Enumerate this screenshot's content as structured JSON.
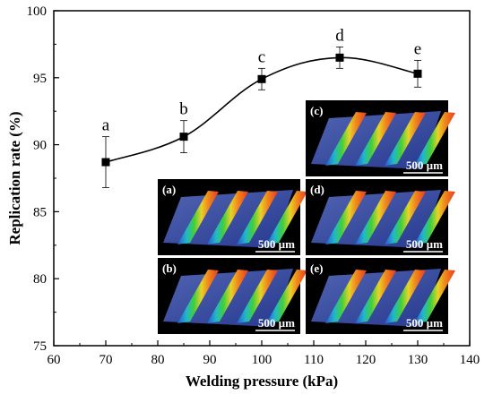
{
  "chart_data": {
    "type": "line",
    "xlabel": "Welding pressure (kPa)",
    "ylabel": "Replication rate (%)",
    "xlim": [
      60,
      140
    ],
    "ylim": [
      75,
      100
    ],
    "xticks": [
      60,
      70,
      80,
      90,
      100,
      110,
      120,
      130,
      140
    ],
    "yticks": [
      75,
      80,
      85,
      90,
      95,
      100
    ],
    "grid": false,
    "series": [
      {
        "x": [
          70,
          85,
          100,
          115,
          130
        ],
        "y": [
          88.7,
          90.6,
          94.9,
          96.5,
          95.3
        ],
        "error": [
          1.9,
          1.2,
          0.8,
          0.8,
          1.0
        ],
        "marker": "square",
        "color": "#000000",
        "smooth": true
      }
    ],
    "annotations": [
      "a",
      "b",
      "c",
      "d",
      "e"
    ]
  },
  "insets": [
    {
      "label": "(c)",
      "scale_bar": "500 µm"
    },
    {
      "label": "(a)",
      "scale_bar": "500 µm"
    },
    {
      "label": "(d)",
      "scale_bar": "500 µm"
    },
    {
      "label": "(b)",
      "scale_bar": "500 µm"
    },
    {
      "label": "(e)",
      "scale_bar": "500 µm"
    }
  ]
}
